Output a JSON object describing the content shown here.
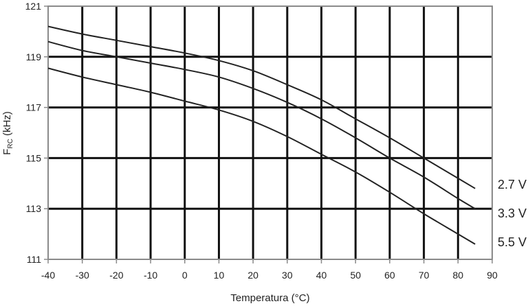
{
  "chart_data": {
    "type": "line",
    "title": "",
    "xlabel": "Temperatura (°C)",
    "ylabel_main": "F",
    "ylabel_sub": "RC",
    "ylabel_unit": " (kHz)",
    "xlim": [
      -40,
      90
    ],
    "ylim": [
      111,
      121
    ],
    "x_ticks": [
      "-40",
      "-30",
      "-20",
      "-10",
      "0",
      "10",
      "20",
      "30",
      "40",
      "50",
      "60",
      "70",
      "80",
      "90"
    ],
    "y_ticks": [
      "111",
      "113",
      "115",
      "117",
      "119",
      "121"
    ],
    "grid": true,
    "legend_placement": "right-end-labels",
    "colors": {
      "series": "#222222",
      "grid": "#111111",
      "frame": "#8a8a8a"
    },
    "series": [
      {
        "name": "2.7 V",
        "x": [
          -40,
          -30,
          -20,
          -10,
          0,
          10,
          20,
          30,
          40,
          50,
          60,
          70,
          80,
          85
        ],
        "values": [
          120.2,
          119.9,
          119.65,
          119.4,
          119.15,
          118.85,
          118.45,
          117.9,
          117.3,
          116.55,
          115.8,
          115.0,
          114.2,
          113.8
        ]
      },
      {
        "name": "3.3 V",
        "x": [
          -40,
          -30,
          -20,
          -10,
          0,
          10,
          20,
          30,
          40,
          50,
          60,
          70,
          80,
          85
        ],
        "values": [
          119.6,
          119.25,
          119.0,
          118.75,
          118.5,
          118.2,
          117.75,
          117.2,
          116.55,
          115.8,
          115.0,
          114.25,
          113.4,
          113.0
        ]
      },
      {
        "name": "5.5 V",
        "x": [
          -40,
          -30,
          -20,
          -10,
          0,
          10,
          20,
          30,
          40,
          50,
          60,
          70,
          80,
          85
        ],
        "values": [
          118.55,
          118.2,
          117.9,
          117.6,
          117.25,
          116.9,
          116.45,
          115.85,
          115.15,
          114.45,
          113.65,
          112.8,
          112.0,
          111.6
        ]
      }
    ]
  }
}
